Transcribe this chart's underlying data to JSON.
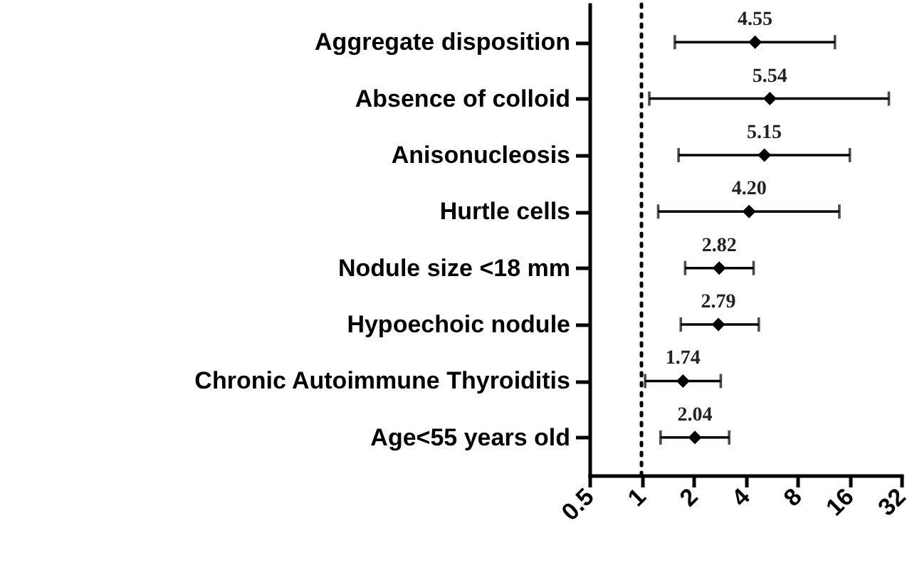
{
  "chart_data": {
    "type": "scatter",
    "orientation": "horizontal",
    "categories": [
      "Aggregate disposition",
      "Absence of colloid",
      "Anisonucleosis",
      "Hurtle cells",
      "Nodule size <18 mm",
      "Hypoechoic nodule",
      "Chronic Autoimmune Thyroiditis",
      "Age<55 years old"
    ],
    "values": [
      4.55,
      5.54,
      5.15,
      4.2,
      2.82,
      2.79,
      1.74,
      2.04
    ],
    "errors": [
      [
        1.56,
        13.2
      ],
      [
        1.11,
        27.1
      ],
      [
        1.64,
        16.1
      ],
      [
        1.25,
        14.0
      ],
      [
        1.79,
        4.46
      ],
      [
        1.69,
        4.78
      ],
      [
        1.05,
        2.88
      ],
      [
        1.29,
        3.22
      ]
    ],
    "value_labels": [
      "4.55",
      "5.54",
      "5.15",
      "4.20",
      "2.82",
      "2.79",
      "1.74",
      "2.04"
    ],
    "color": "#000000",
    "marker": "diamond",
    "log": "x",
    "xlim": [
      0.5,
      32
    ],
    "xticks": [
      0.5,
      1,
      2,
      4,
      8,
      16,
      32
    ],
    "ref_lines": [
      {
        "axis": "x",
        "value": 1,
        "line_style": "dotted",
        "color": "#000000"
      }
    ]
  }
}
